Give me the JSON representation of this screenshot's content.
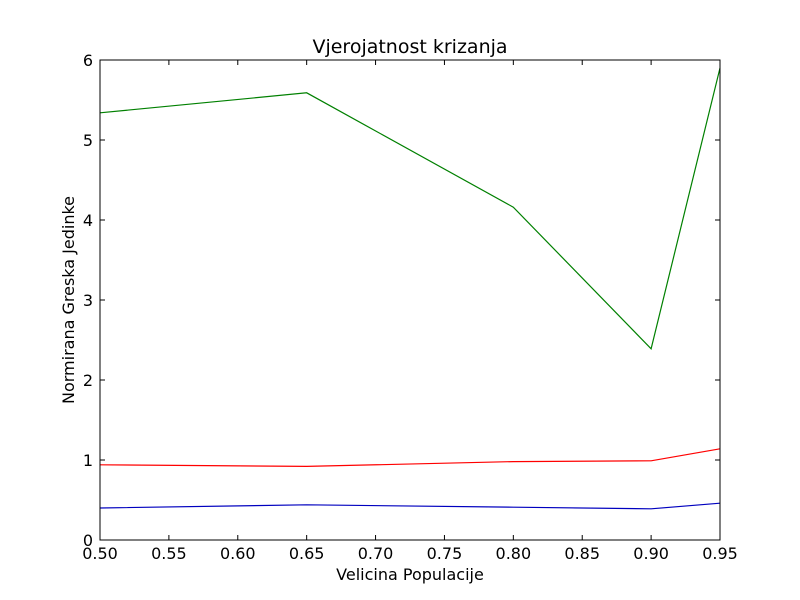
{
  "chart_data": {
    "type": "line",
    "title": "Vjerojatnost krizanja",
    "xlabel": "Velicina Populacije",
    "ylabel": "Normirana Greska Jedinke",
    "xlim": [
      0.5,
      0.95
    ],
    "ylim": [
      0,
      6
    ],
    "xticks": [
      "0.50",
      "0.55",
      "0.60",
      "0.65",
      "0.70",
      "0.75",
      "0.80",
      "0.85",
      "0.90",
      "0.95"
    ],
    "yticks": [
      "0",
      "1",
      "2",
      "3",
      "4",
      "5",
      "6"
    ],
    "grid": false,
    "x": [
      0.5,
      0.65,
      0.8,
      0.9,
      0.95
    ],
    "series": [
      {
        "color": "#0000bf",
        "values": [
          0.4,
          0.44,
          0.41,
          0.39,
          0.46
        ]
      },
      {
        "color": "#ff0000",
        "values": [
          0.94,
          0.92,
          0.98,
          0.99,
          1.14
        ]
      },
      {
        "color": "#008000",
        "values": [
          5.34,
          5.59,
          4.16,
          2.39,
          5.9
        ]
      }
    ]
  }
}
